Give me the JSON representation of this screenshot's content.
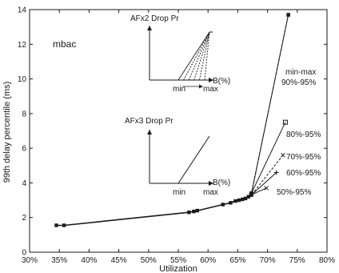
{
  "colors": {
    "ink": "#1a1a1a",
    "background": "#ffffff"
  },
  "chart_data": {
    "type": "line",
    "title": "",
    "xlabel": "Utilization",
    "ylabel": "99th delay percentile (ms)",
    "x_unit": "%",
    "xlim": [
      30,
      80
    ],
    "ylim": [
      0,
      14
    ],
    "x_ticks": [
      30,
      35,
      40,
      45,
      50,
      55,
      60,
      65,
      70,
      75,
      80
    ],
    "x_tick_labels": [
      "30%",
      "35%",
      "40%",
      "45%",
      "50%",
      "55%",
      "60%",
      "65%",
      "70%",
      "75%",
      "80%"
    ],
    "y_ticks": [
      0,
      2,
      4,
      6,
      8,
      10,
      12,
      14
    ],
    "y_tick_labels": [
      "0",
      "2",
      "4",
      "6",
      "8",
      "10",
      "12",
      "14"
    ],
    "grid": false,
    "legend": "none",
    "corner_label": "mbac",
    "common_path": {
      "x": [
        34.5,
        35.8,
        56.8,
        57.6,
        58.2,
        62.5,
        63.8,
        64.6,
        65.2,
        65.8,
        66.3,
        66.8
      ],
      "y": [
        1.55,
        1.55,
        2.3,
        2.35,
        2.4,
        2.75,
        2.85,
        2.95,
        3.0,
        3.05,
        3.1,
        3.2
      ]
    },
    "series": [
      {
        "label": "min-max",
        "x": [
          66.8,
          67.3,
          73.5
        ],
        "y": [
          3.2,
          3.4,
          13.7
        ]
      },
      {
        "label": "90%-95%",
        "x": [
          66.8,
          67.3,
          73.5
        ],
        "y": [
          3.2,
          3.4,
          13.7
        ]
      },
      {
        "label": "80%-95%",
        "x": [
          66.8,
          67.3,
          73.0
        ],
        "y": [
          3.2,
          3.4,
          7.5
        ]
      },
      {
        "label": "70%-95%",
        "x": [
          66.8,
          67.3,
          72.6
        ],
        "y": [
          3.2,
          3.3,
          5.6
        ]
      },
      {
        "label": "60%-95%",
        "x": [
          66.8,
          67.3,
          71.5
        ],
        "y": [
          3.2,
          3.3,
          4.6
        ]
      },
      {
        "label": "50%-95%",
        "x": [
          66.8,
          67.2,
          69.8
        ],
        "y": [
          3.2,
          3.3,
          3.7
        ]
      }
    ],
    "insets": [
      {
        "ylabel": "AFx2 Drop Pr",
        "xlabel": "B(%)",
        "min_label": "min",
        "max_label": "max",
        "kind": "fan",
        "fan_lines": 6
      },
      {
        "ylabel": "AFx3 Drop Pr",
        "xlabel": "B(%)",
        "min_label": "min",
        "max_label": "max",
        "kind": "single"
      }
    ]
  }
}
